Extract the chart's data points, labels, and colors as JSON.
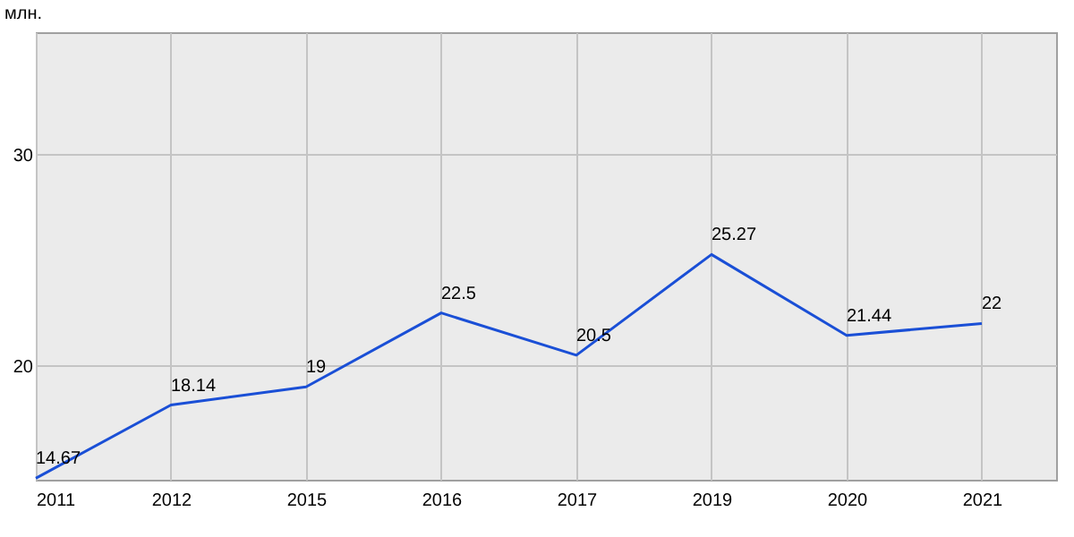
{
  "chart_data": {
    "type": "line",
    "ylabel": "млн.",
    "categories": [
      "2011",
      "2012",
      "2015",
      "2016",
      "2017",
      "2019",
      "2020",
      "2021"
    ],
    "series": [
      {
        "color": "#1a4fd6",
        "values": [
          14.67,
          18.14,
          19,
          22.5,
          20.5,
          25.27,
          21.44,
          22
        ]
      }
    ],
    "ylim": [
      14.6,
      35.8
    ],
    "yticks": [
      20,
      30
    ],
    "grid": true,
    "data_labels": true,
    "marker": "none",
    "line_style": "solid"
  }
}
